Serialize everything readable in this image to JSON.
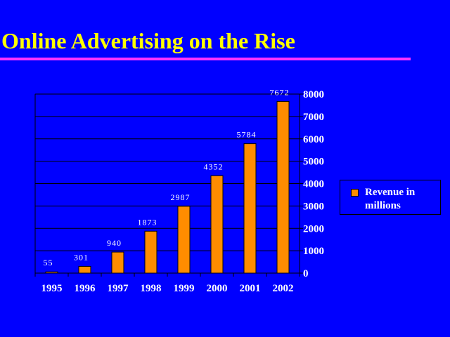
{
  "slide": {
    "title": "Online Advertising on the Rise"
  },
  "colors": {
    "background": "#0000ff",
    "title": "#ffff00",
    "rule": "#ff33ff",
    "bar": "#ff8c00",
    "text": "#ffffff"
  },
  "chart_data": {
    "type": "bar",
    "title": "",
    "xlabel": "",
    "ylabel": "",
    "categories": [
      "1995",
      "1996",
      "1997",
      "1998",
      "1999",
      "2000",
      "2001",
      "2002"
    ],
    "series": [
      {
        "name": "Revenue in millions",
        "values": [
          55,
          301,
          940,
          1873,
          2987,
          4352,
          5784,
          7672
        ]
      }
    ],
    "data_labels": [
      "55",
      "301",
      "940",
      "1873",
      "2987",
      "4352",
      "5784",
      "7672"
    ],
    "ylim": [
      0,
      8000
    ],
    "yticks": [
      "0",
      "1000",
      "2000",
      "3000",
      "4000",
      "5000",
      "6000",
      "7000",
      "8000"
    ],
    "y_axis_side": "right",
    "grid": true,
    "legend_position": "right"
  }
}
